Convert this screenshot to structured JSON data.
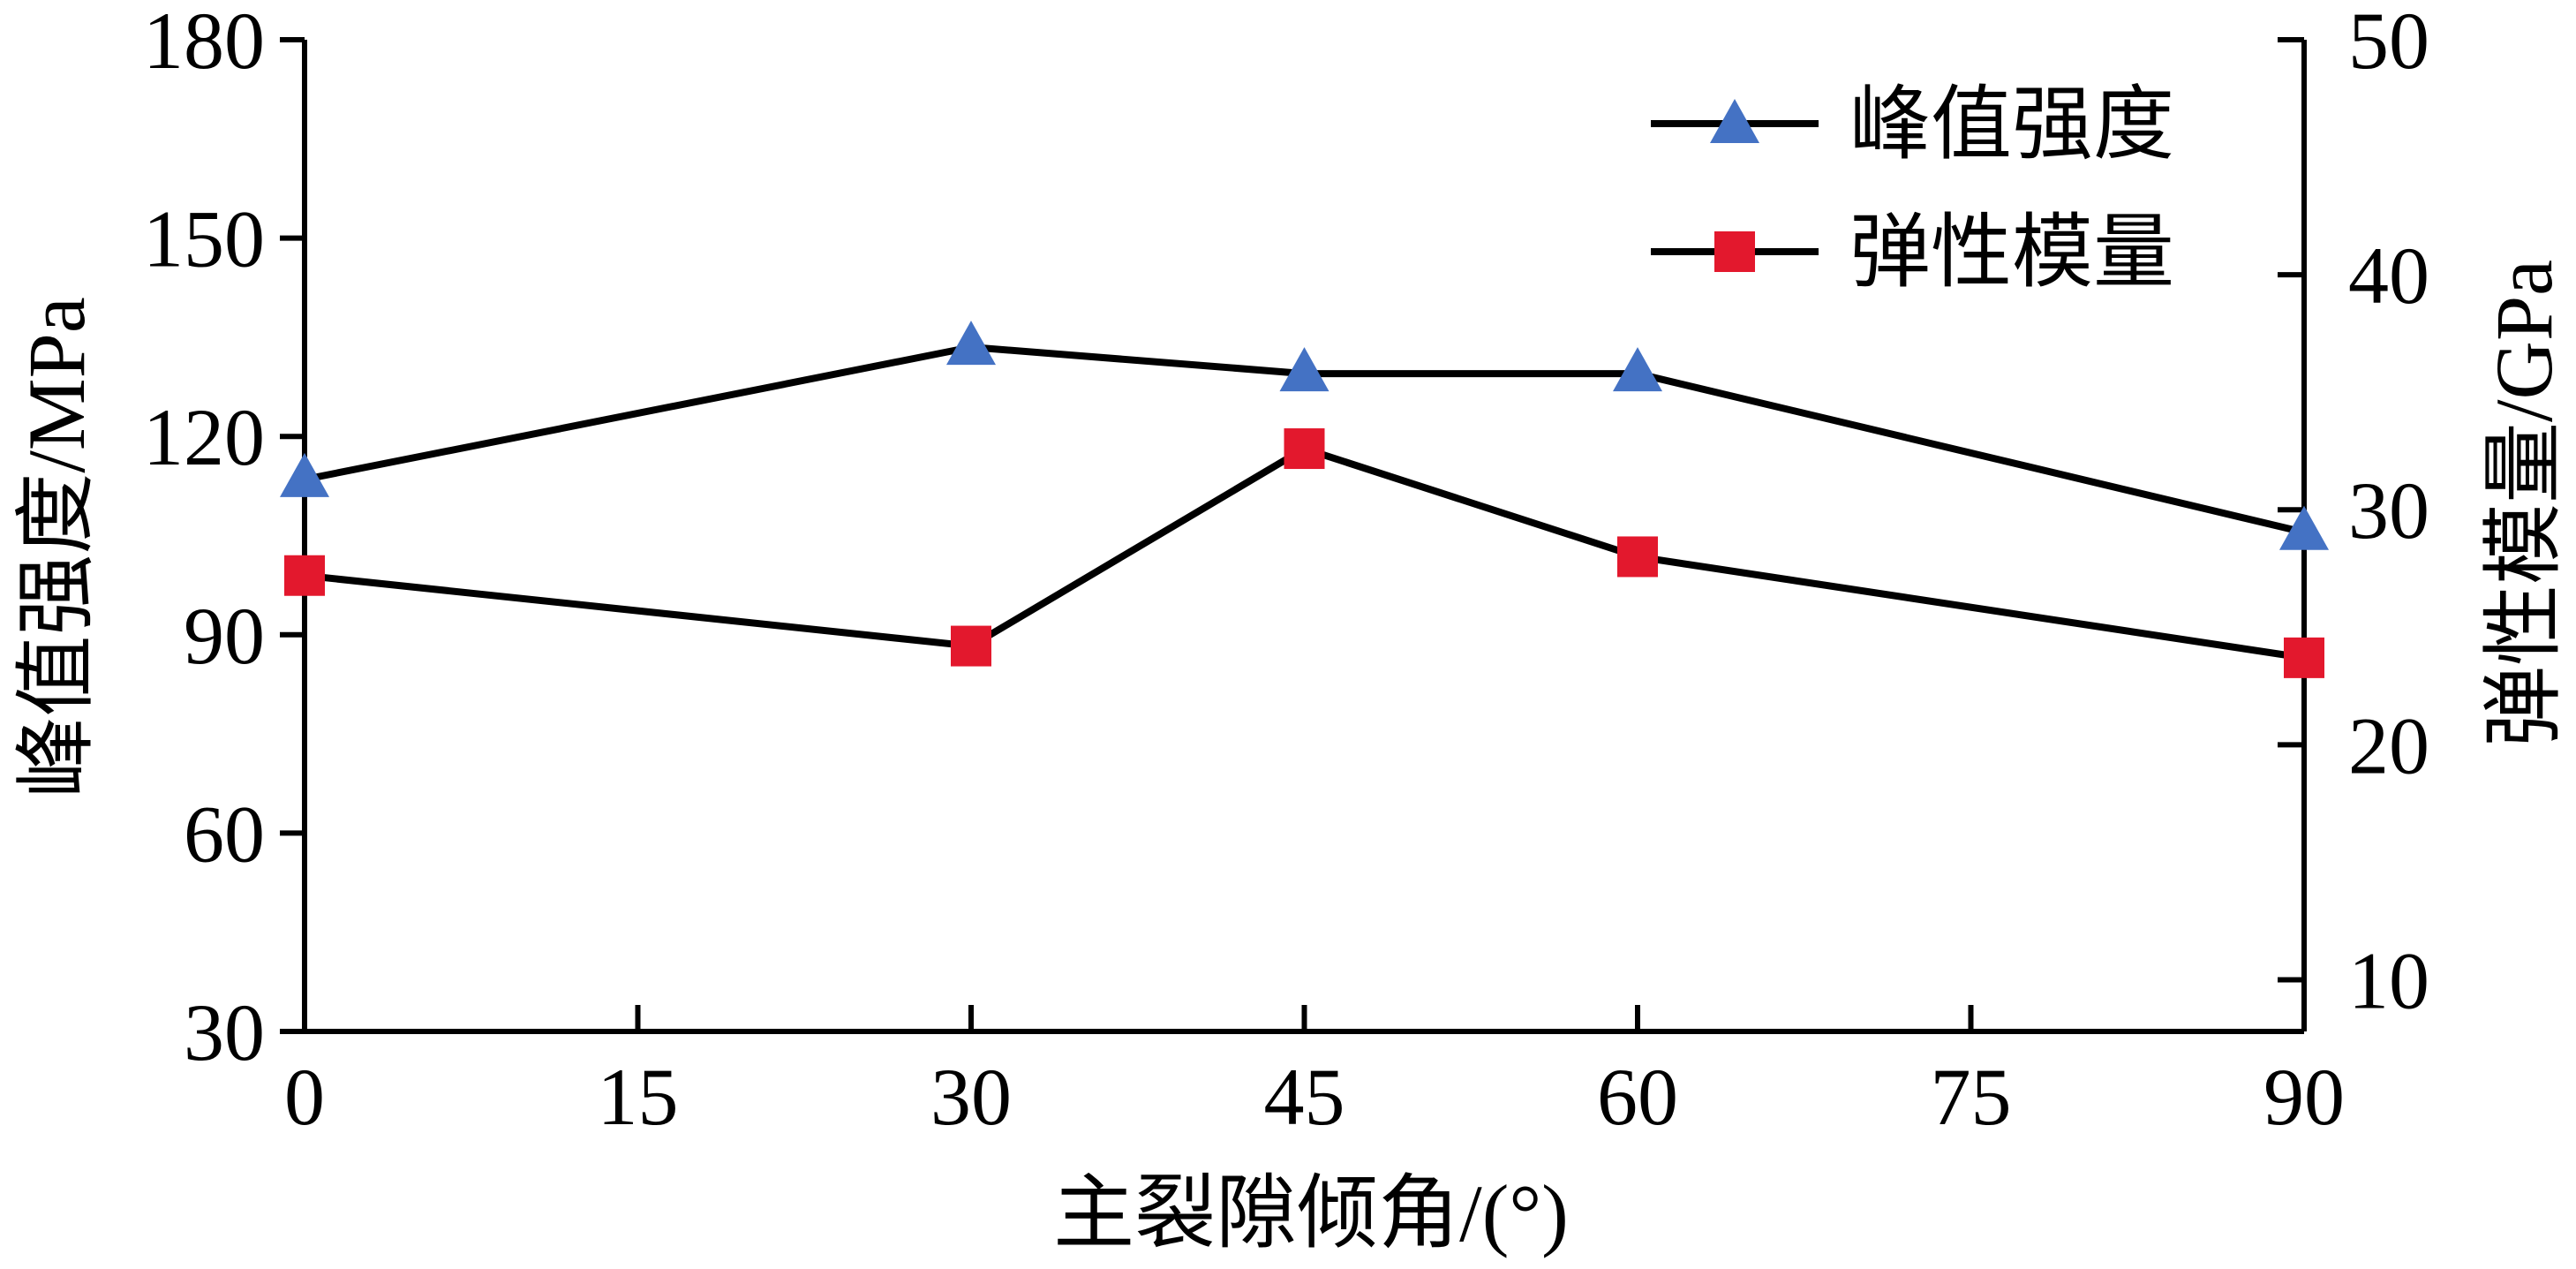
{
  "chart_data": {
    "type": "line",
    "x": [
      0,
      30,
      45,
      60,
      90
    ],
    "xlabel": "主裂隙倾角/(°)",
    "xlim": [
      0,
      90
    ],
    "xticks": [
      "0",
      "15",
      "30",
      "45",
      "60",
      "75",
      "90"
    ],
    "ylabel_left": "峰值强度/MPa",
    "ylim_left": [
      30,
      180
    ],
    "yticks_left": [
      "30",
      "60",
      "90",
      "120",
      "150",
      "180"
    ],
    "ylabel_right": "弹性模量/GPa",
    "ylim_right": [
      7.8,
      50
    ],
    "yticks_right": [
      "10",
      "20",
      "30",
      "40",
      "50"
    ],
    "grid": false,
    "legend_position": "top-right",
    "series": [
      {
        "name": "峰值强度",
        "axis": "left",
        "marker": "triangle",
        "marker_color": "#4472C4",
        "line_color": "#000000",
        "values": [
          113.5,
          133.5,
          129.5,
          129.5,
          105.5
        ]
      },
      {
        "name": "弹性模量",
        "axis": "right",
        "marker": "square",
        "marker_color": "#E3182D",
        "line_color": "#000000",
        "values": [
          27.2,
          24.2,
          32.6,
          28.0,
          23.7
        ]
      }
    ]
  }
}
